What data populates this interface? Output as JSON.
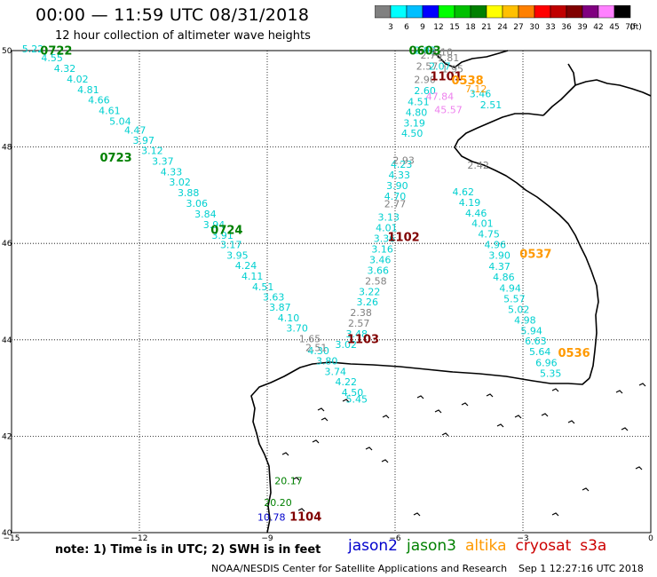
{
  "title": "00:00 — 11:59 UTC 08/31/2018",
  "subtitle": "12 hour collection of altimeter wave heights",
  "colorbar": {
    "unit": "(ft)",
    "labels": [
      "3",
      "6",
      "9",
      "12",
      "15",
      "18",
      "21",
      "24",
      "27",
      "30",
      "33",
      "36",
      "39",
      "42",
      "45",
      "70"
    ],
    "colors": [
      "#808080",
      "#00ffff",
      "#00bfff",
      "#0000ff",
      "#00ff00",
      "#00c000",
      "#008000",
      "#ffff00",
      "#ffc000",
      "#ff8000",
      "#ff0000",
      "#c00000",
      "#800000",
      "#800080",
      "#ff80ff",
      "#000000"
    ]
  },
  "axes": {
    "lon_ticks": [
      -15,
      -12,
      -9,
      -6,
      -3,
      0
    ],
    "lon_labels": [
      "−15",
      "−12",
      "−9",
      "−6",
      "−3",
      "0"
    ],
    "lat_ticks": [
      40,
      42,
      44,
      46,
      48,
      50
    ],
    "lat_labels": [
      "40",
      "42",
      "44",
      "46",
      "48",
      "50"
    ],
    "lon_range": [
      -15,
      0
    ],
    "lat_range": [
      40,
      50
    ],
    "grid": true
  },
  "missions": [
    {
      "name": "jason2",
      "color": "#0000cc"
    },
    {
      "name": "jason3",
      "color": "#008000"
    },
    {
      "name": "altika",
      "color": "#ff9900"
    },
    {
      "name": "cryosat",
      "color": "#cc0000"
    },
    {
      "name": "s3a",
      "color": "#cc0000"
    }
  ],
  "note": "note: 1) Time is in UTC; 2) SWH is in feet",
  "credit": "NOAA/NESDIS Center for Satellite Applications and Research",
  "timestamp": "Sep  1 12:27:16 UTC 2018",
  "time_labels": [
    {
      "text": "0722",
      "lon": -13.95,
      "lat": 49.92,
      "color": "#008000"
    },
    {
      "text": "0723",
      "lon": -12.55,
      "lat": 47.7,
      "color": "#008000"
    },
    {
      "text": "0724",
      "lon": -9.95,
      "lat": 46.2,
      "color": "#008000"
    },
    {
      "text": "0603",
      "lon": -5.3,
      "lat": 49.92,
      "color": "#008000"
    },
    {
      "text": "1101",
      "lon": -4.8,
      "lat": 49.38,
      "color": "#800000"
    },
    {
      "text": "0538",
      "lon": -4.3,
      "lat": 49.3,
      "color": "#ff9900"
    },
    {
      "text": "1102",
      "lon": -5.8,
      "lat": 46.05,
      "color": "#800000"
    },
    {
      "text": "0537",
      "lon": -2.7,
      "lat": 45.7,
      "color": "#ff9900"
    },
    {
      "text": "1103",
      "lon": -6.75,
      "lat": 43.93,
      "color": "#800000"
    },
    {
      "text": "0536",
      "lon": -1.8,
      "lat": 43.65,
      "color": "#ff9900"
    },
    {
      "text": "1104",
      "lon": -8.1,
      "lat": 40.25,
      "color": "#800000"
    }
  ],
  "tracks": [
    {
      "color": "#00d0d0",
      "points": [
        {
          "lon": -14.5,
          "lat": 49.96,
          "v": "5.22"
        },
        {
          "lon": -14.05,
          "lat": 49.78,
          "v": "4.55"
        },
        {
          "lon": -13.75,
          "lat": 49.56,
          "v": "4.32"
        },
        {
          "lon": -13.45,
          "lat": 49.34,
          "v": "4.02"
        },
        {
          "lon": -13.2,
          "lat": 49.12,
          "v": "4.81"
        },
        {
          "lon": -12.95,
          "lat": 48.9,
          "v": "4.66"
        },
        {
          "lon": -12.7,
          "lat": 48.68,
          "v": "4.61"
        },
        {
          "lon": -12.45,
          "lat": 48.46,
          "v": "5.04"
        },
        {
          "lon": -12.1,
          "lat": 48.28,
          "v": "4.47"
        },
        {
          "lon": -11.9,
          "lat": 48.07,
          "v": "3.97"
        },
        {
          "lon": -11.7,
          "lat": 47.85,
          "v": "3.12"
        },
        {
          "lon": -11.45,
          "lat": 47.63,
          "v": "3.37"
        },
        {
          "lon": -11.25,
          "lat": 47.41,
          "v": "4.33"
        },
        {
          "lon": -11.05,
          "lat": 47.2,
          "v": "3.02"
        },
        {
          "lon": -10.85,
          "lat": 46.98,
          "v": "3.88"
        },
        {
          "lon": -10.65,
          "lat": 46.76,
          "v": "3.06"
        },
        {
          "lon": -10.45,
          "lat": 46.54,
          "v": "3.84"
        },
        {
          "lon": -10.25,
          "lat": 46.32,
          "v": "3.94"
        },
        {
          "lon": -10.05,
          "lat": 46.1,
          "v": "3.91"
        },
        {
          "lon": -9.85,
          "lat": 45.9,
          "v": "3.17"
        },
        {
          "lon": -9.7,
          "lat": 45.68,
          "v": "3.95"
        },
        {
          "lon": -9.5,
          "lat": 45.47,
          "v": "4.24"
        },
        {
          "lon": -9.35,
          "lat": 45.25,
          "v": "4.11"
        },
        {
          "lon": -9.1,
          "lat": 45.03,
          "v": "4.51"
        },
        {
          "lon": -8.85,
          "lat": 44.82,
          "v": "3.63"
        },
        {
          "lon": -8.7,
          "lat": 44.6,
          "v": "3.87"
        },
        {
          "lon": -8.5,
          "lat": 44.38,
          "v": "4.10"
        },
        {
          "lon": -8.3,
          "lat": 44.17,
          "v": "3.70"
        },
        {
          "lon": -7.8,
          "lat": 43.7,
          "v": "4.30"
        },
        {
          "lon": -7.6,
          "lat": 43.49,
          "v": "3.80"
        },
        {
          "lon": -7.4,
          "lat": 43.27,
          "v": "3.74"
        },
        {
          "lon": -7.15,
          "lat": 43.06,
          "v": "4.22"
        },
        {
          "lon": -7.0,
          "lat": 42.84,
          "v": "4.50"
        },
        {
          "lon": -6.9,
          "lat": 42.7,
          "v": "5.45"
        }
      ]
    },
    {
      "color": "#808080",
      "points": [
        {
          "lon": -8.0,
          "lat": 43.95,
          "v": "1.65"
        },
        {
          "lon": -7.85,
          "lat": 43.77,
          "v": "2.51"
        }
      ]
    },
    {
      "color": "#00d0d0",
      "points": [
        {
          "lon": -5.3,
          "lat": 49.94,
          "v": "2.02"
        },
        {
          "lon": -5.3,
          "lat": 49.1,
          "v": "2.60"
        },
        {
          "lon": -5.45,
          "lat": 48.87,
          "v": "4.51"
        },
        {
          "lon": -5.5,
          "lat": 48.65,
          "v": "4.80"
        },
        {
          "lon": -5.55,
          "lat": 48.43,
          "v": "3.19"
        },
        {
          "lon": -5.6,
          "lat": 48.21,
          "v": "4.50"
        },
        {
          "lon": -5.85,
          "lat": 47.57,
          "v": "4.23"
        },
        {
          "lon": -5.9,
          "lat": 47.35,
          "v": "4.33"
        },
        {
          "lon": -5.95,
          "lat": 47.13,
          "v": "3.90"
        },
        {
          "lon": -6.0,
          "lat": 46.91,
          "v": "4.70"
        },
        {
          "lon": -6.15,
          "lat": 46.47,
          "v": "3.13"
        },
        {
          "lon": -6.2,
          "lat": 46.25,
          "v": "4.01"
        },
        {
          "lon": -6.25,
          "lat": 46.03,
          "v": "3.36"
        },
        {
          "lon": -6.3,
          "lat": 45.81,
          "v": "3.16"
        },
        {
          "lon": -6.35,
          "lat": 45.59,
          "v": "3.46"
        },
        {
          "lon": -6.4,
          "lat": 45.37,
          "v": "3.66"
        },
        {
          "lon": -6.6,
          "lat": 44.93,
          "v": "3.22"
        },
        {
          "lon": -6.65,
          "lat": 44.71,
          "v": "3.26"
        },
        {
          "lon": -6.9,
          "lat": 44.05,
          "v": "3.48"
        },
        {
          "lon": -7.15,
          "lat": 43.83,
          "v": "3.02"
        }
      ]
    },
    {
      "color": "#808080",
      "points": [
        {
          "lon": -5.15,
          "lat": 49.83,
          "v": "2.76"
        },
        {
          "lon": -4.9,
          "lat": 49.9,
          "v": "2.10"
        },
        {
          "lon": -4.75,
          "lat": 49.78,
          "v": "1.81"
        },
        {
          "lon": -5.25,
          "lat": 49.6,
          "v": "2.57"
        },
        {
          "lon": -4.65,
          "lat": 49.55,
          "v": "1.95"
        },
        {
          "lon": -5.3,
          "lat": 49.33,
          "v": "2.90"
        },
        {
          "lon": -4.05,
          "lat": 47.55,
          "v": "2.42"
        },
        {
          "lon": -5.8,
          "lat": 47.65,
          "v": "2.93"
        },
        {
          "lon": -6.0,
          "lat": 46.75,
          "v": "2.77"
        },
        {
          "lon": -6.45,
          "lat": 45.15,
          "v": "2.58"
        },
        {
          "lon": -6.8,
          "lat": 44.49,
          "v": "2.38"
        },
        {
          "lon": -6.85,
          "lat": 44.27,
          "v": "2.57"
        }
      ]
    },
    {
      "color": "#00d0d0",
      "points": [
        {
          "lon": -4.95,
          "lat": 49.6,
          "v": "2.07"
        },
        {
          "lon": -4.0,
          "lat": 49.03,
          "v": "3.46"
        },
        {
          "lon": -3.75,
          "lat": 48.8,
          "v": "2.51"
        }
      ]
    },
    {
      "color": "#ee82ee",
      "points": [
        {
          "lon": -4.95,
          "lat": 48.98,
          "v": "47.84"
        },
        {
          "lon": -4.75,
          "lat": 48.7,
          "v": "45.57"
        }
      ]
    },
    {
      "color": "#ff9900",
      "points": [
        {
          "lon": -4.1,
          "lat": 49.13,
          "v": "7.12"
        }
      ]
    },
    {
      "color": "#00d0d0",
      "points": [
        {
          "lon": -4.4,
          "lat": 47.0,
          "v": "4.62"
        },
        {
          "lon": -4.25,
          "lat": 46.78,
          "v": "4.19"
        },
        {
          "lon": -4.1,
          "lat": 46.56,
          "v": "4.46"
        },
        {
          "lon": -3.95,
          "lat": 46.34,
          "v": "4.01"
        },
        {
          "lon": -3.8,
          "lat": 46.12,
          "v": "4.75"
        },
        {
          "lon": -3.65,
          "lat": 45.9,
          "v": "4.96"
        },
        {
          "lon": -3.55,
          "lat": 45.68,
          "v": "3.90"
        },
        {
          "lon": -3.55,
          "lat": 45.45,
          "v": "4.37"
        },
        {
          "lon": -3.45,
          "lat": 45.23,
          "v": "4.86"
        },
        {
          "lon": -3.3,
          "lat": 45.0,
          "v": "4.94"
        },
        {
          "lon": -3.2,
          "lat": 44.78,
          "v": "5.57"
        },
        {
          "lon": -3.1,
          "lat": 44.56,
          "v": "5.02"
        },
        {
          "lon": -2.95,
          "lat": 44.34,
          "v": "4.98"
        },
        {
          "lon": -2.8,
          "lat": 44.12,
          "v": "5.94"
        },
        {
          "lon": -2.7,
          "lat": 43.9,
          "v": "6.63"
        },
        {
          "lon": -2.6,
          "lat": 43.68,
          "v": "5.64"
        },
        {
          "lon": -2.45,
          "lat": 43.45,
          "v": "6.96"
        },
        {
          "lon": -2.35,
          "lat": 43.23,
          "v": "5.35"
        }
      ]
    },
    {
      "color": "#008000",
      "points": [
        {
          "lon": -8.5,
          "lat": 41.0,
          "v": "20.17"
        },
        {
          "lon": -8.75,
          "lat": 40.55,
          "v": "20.20"
        }
      ]
    },
    {
      "color": "#0000cc",
      "points": [
        {
          "lon": -8.9,
          "lat": 40.25,
          "v": "10.78"
        }
      ]
    }
  ]
}
